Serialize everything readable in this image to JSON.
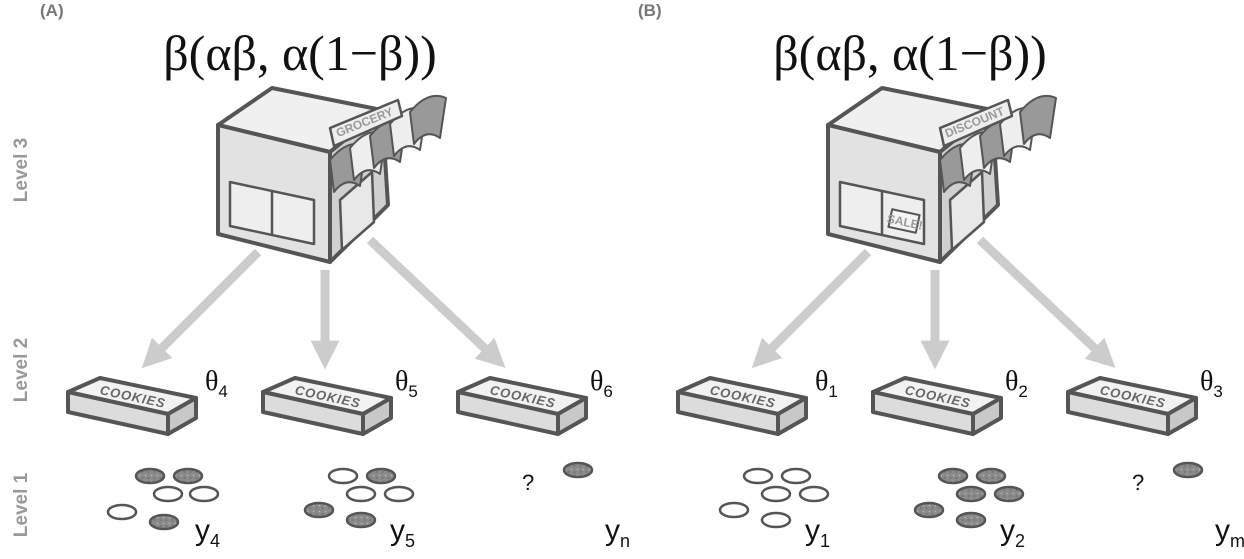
{
  "level_labels": [
    "Level 3",
    "Level 2",
    "Level 1"
  ],
  "panels": [
    {
      "label": "(A)",
      "formula": "β(αβ, α(1−β))",
      "store_sign": "GROCERY",
      "boxes": [
        {
          "box_label": "COOKIES",
          "theta": "θ",
          "theta_sub": "4",
          "y": "y",
          "y_sub": "4"
        },
        {
          "box_label": "COOKIES",
          "theta": "θ",
          "theta_sub": "5",
          "y": "y",
          "y_sub": "5"
        },
        {
          "box_label": "COOKIES",
          "theta": "θ",
          "theta_sub": "6",
          "y": "y",
          "y_sub": "n",
          "question": "?"
        }
      ]
    },
    {
      "label": "(B)",
      "formula": "β(αβ, α(1−β))",
      "store_sign": "DISCOUNT",
      "window_sign": "SALE!",
      "boxes": [
        {
          "box_label": "COOKIES",
          "theta": "θ",
          "theta_sub": "1",
          "y": "y",
          "y_sub": "1"
        },
        {
          "box_label": "COOKIES",
          "theta": "θ",
          "theta_sub": "2",
          "y": "y",
          "y_sub": "2"
        },
        {
          "box_label": "COOKIES",
          "theta": "θ",
          "theta_sub": "3",
          "y": "y",
          "y_sub": "m",
          "question": "?"
        }
      ]
    }
  ]
}
